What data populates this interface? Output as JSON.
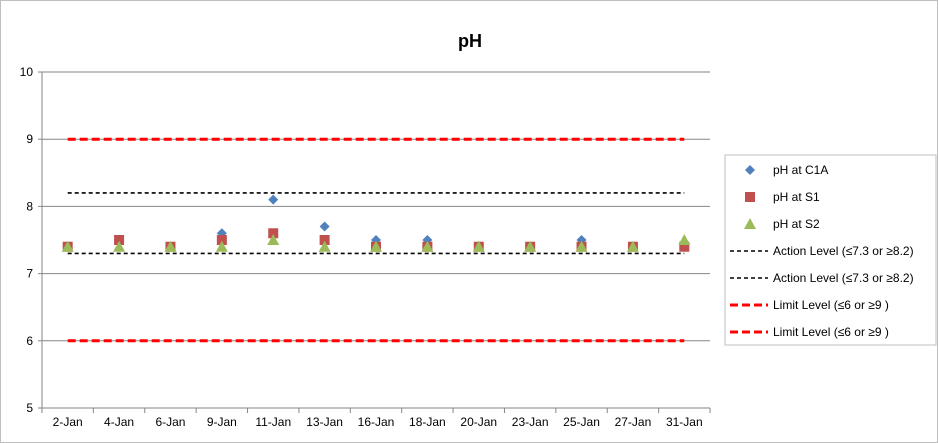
{
  "chart_data": {
    "type": "scatter",
    "title": "pH",
    "xlabel": "",
    "ylabel": "",
    "ylim": [
      5,
      10
    ],
    "yticks": [
      5,
      6,
      7,
      8,
      9,
      10
    ],
    "grid": true,
    "legend_position": "right",
    "categories": [
      "2-Jan",
      "4-Jan",
      "6-Jan",
      "9-Jan",
      "11-Jan",
      "13-Jan",
      "16-Jan",
      "18-Jan",
      "20-Jan",
      "23-Jan",
      "25-Jan",
      "27-Jan",
      "31-Jan"
    ],
    "series": [
      {
        "name": "pH at C1A",
        "marker": "diamond",
        "color": "#4f81bd",
        "values": [
          7.4,
          7.5,
          7.4,
          7.6,
          8.1,
          7.7,
          7.5,
          7.5,
          7.4,
          7.4,
          7.5,
          7.4,
          7.4
        ]
      },
      {
        "name": "pH at S1",
        "marker": "square",
        "color": "#c0504d",
        "values": [
          7.4,
          7.5,
          7.4,
          7.5,
          7.6,
          7.5,
          7.4,
          7.4,
          7.4,
          7.4,
          7.4,
          7.4,
          7.4
        ]
      },
      {
        "name": "pH at S2",
        "marker": "triangle",
        "color": "#9bbb59",
        "values": [
          7.4,
          7.4,
          7.4,
          7.4,
          7.5,
          7.4,
          7.4,
          7.4,
          7.4,
          7.4,
          7.4,
          7.4,
          7.5
        ]
      }
    ],
    "reference_lines": [
      {
        "name": "Action Level (≤7.3 or ≥8.2)",
        "value": 8.2,
        "color": "#000000",
        "style": "dashed"
      },
      {
        "name": "Action Level (≤7.3 or ≥8.2)",
        "value": 7.3,
        "color": "#000000",
        "style": "dashed"
      },
      {
        "name": "Limit Level (≤6 or ≥9 )",
        "value": 9,
        "color": "#ff0000",
        "style": "dashed-thick"
      },
      {
        "name": "Limit Level (≤6 or ≥9 )",
        "value": 6,
        "color": "#ff0000",
        "style": "dashed-thick"
      }
    ]
  }
}
